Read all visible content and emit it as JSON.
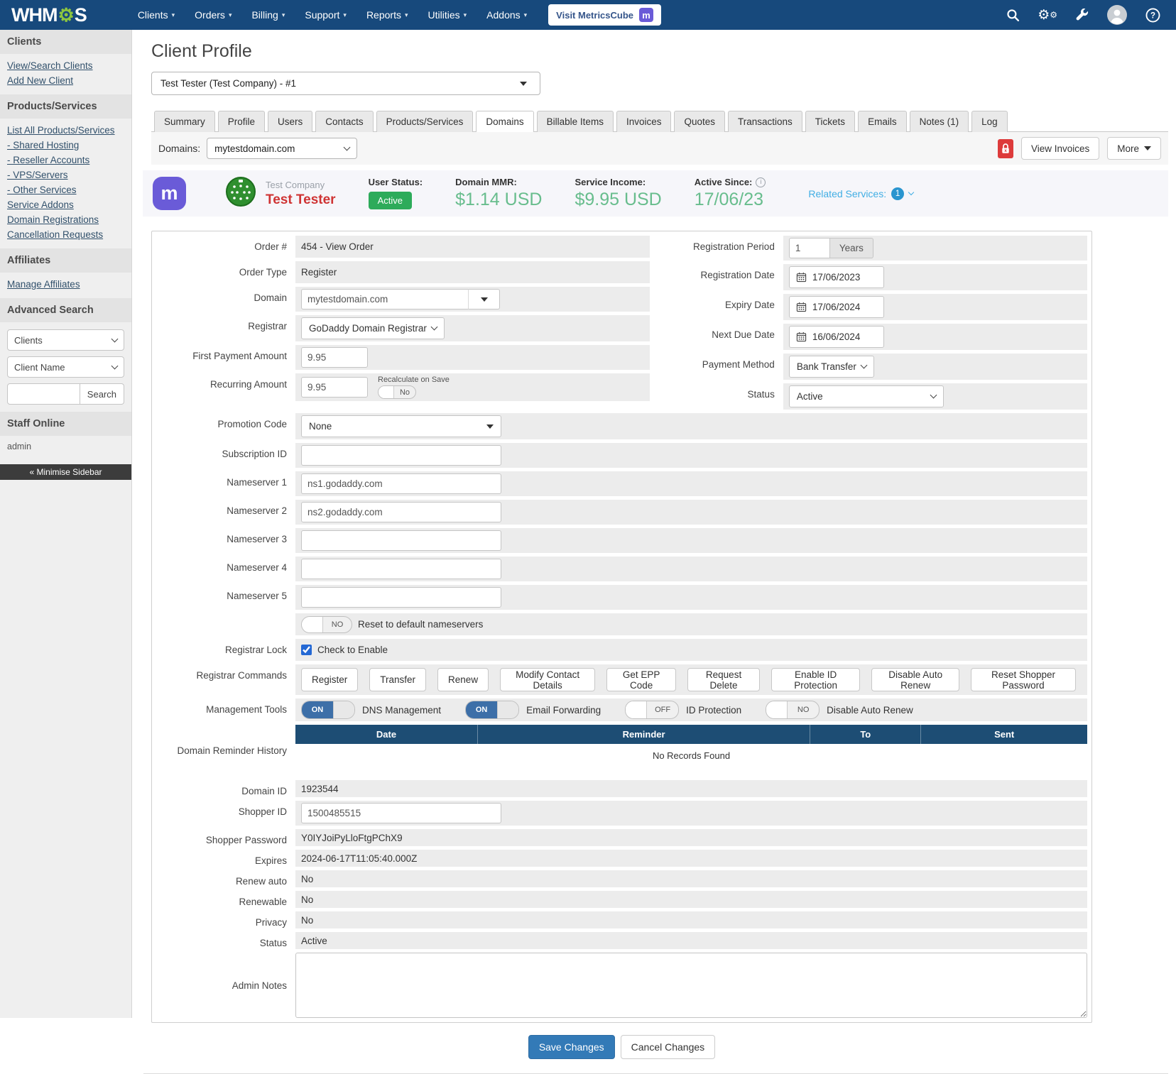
{
  "navbar": {
    "logo_pre": "WHM",
    "logo_gear": "⚙",
    "logo_post": "S",
    "items": [
      "Clients",
      "Orders",
      "Billing",
      "Support",
      "Reports",
      "Utilities",
      "Addons"
    ],
    "metricscube_label": "Visit MetricsCube",
    "metricscube_badge": "m",
    "icons": [
      "search",
      "settings-gears",
      "wrench-tools",
      "user-account",
      "help"
    ]
  },
  "sidebar": {
    "sections": [
      {
        "title": "Clients",
        "links": [
          "View/Search Clients",
          "Add New Client"
        ]
      },
      {
        "title": "Products/Services",
        "links": [
          "List All Products/Services",
          "- Shared Hosting",
          "- Reseller Accounts",
          "- VPS/Servers",
          "- Other Services",
          "Service Addons",
          "Domain Registrations",
          "Cancellation Requests"
        ]
      },
      {
        "title": "Affiliates",
        "links": [
          "Manage Affiliates"
        ]
      }
    ],
    "advanced_search": {
      "title": "Advanced Search",
      "select1": "Clients",
      "select2": "Client Name",
      "search_placeholder": "",
      "button": "Search"
    },
    "staff_online": {
      "title": "Staff Online",
      "names": [
        "admin"
      ]
    },
    "minimise": "« Minimise Sidebar"
  },
  "page": {
    "title": "Client Profile",
    "client_select": "Test Tester (Test Company) - #1",
    "tabs": [
      "Summary",
      "Profile",
      "Users",
      "Contacts",
      "Products/Services",
      "Domains",
      "Billable Items",
      "Invoices",
      "Quotes",
      "Transactions",
      "Tickets",
      "Emails",
      "Notes (1)",
      "Log"
    ],
    "active_tab": "Domains"
  },
  "toolbar": {
    "domains_label": "Domains:",
    "domain_select": "mytestdomain.com",
    "view_invoices": "View Invoices",
    "more": "More"
  },
  "summary": {
    "logo_letter": "m",
    "company": "Test Company",
    "name": "Test Tester",
    "stats": [
      {
        "label": "User Status:",
        "value": "Active",
        "style": "badge"
      },
      {
        "label": "Domain MMR:",
        "value": "$1.14 USD",
        "style": "money"
      },
      {
        "label": "Service Income:",
        "value": "$9.95 USD",
        "style": "money"
      },
      {
        "label": "Active Since:",
        "value": "17/06/23",
        "style": "money",
        "info": true
      }
    ],
    "related_label": "Related Services:",
    "related_count": "1"
  },
  "form": {
    "order_label": "Order #",
    "order_value": "454 - View Order",
    "order_type_label": "Order Type",
    "order_type_value": "Register",
    "domain_label": "Domain",
    "domain_value": "mytestdomain.com",
    "registrar_label": "Registrar",
    "registrar_value": "GoDaddy Domain Registrar",
    "first_payment_label": "First Payment Amount",
    "first_payment_value": "9.95",
    "recurring_label": "Recurring Amount",
    "recurring_value": "9.95",
    "recalc_label": "Recalculate on Save",
    "recalc_toggle": "No",
    "reg_period_label": "Registration Period",
    "reg_period_value": "1",
    "reg_period_addon": "Years",
    "reg_date_label": "Registration Date",
    "reg_date_value": "17/06/2023",
    "expiry_label": "Expiry Date",
    "expiry_value": "17/06/2024",
    "next_due_label": "Next Due Date",
    "next_due_value": "16/06/2024",
    "payment_label": "Payment Method",
    "payment_value": "Bank Transfer",
    "status_label": "Status",
    "status_value": "Active",
    "promo_label": "Promotion Code",
    "promo_value": "None",
    "subscription_label": "Subscription ID",
    "subscription_value": "",
    "nameservers": [
      {
        "label": "Nameserver 1",
        "value": "ns1.godaddy.com"
      },
      {
        "label": "Nameserver 2",
        "value": "ns2.godaddy.com"
      },
      {
        "label": "Nameserver 3",
        "value": ""
      },
      {
        "label": "Nameserver 4",
        "value": ""
      },
      {
        "label": "Nameserver 5",
        "value": ""
      }
    ],
    "reset_ns_toggle": "NO",
    "reset_ns_label": "Reset to default nameservers",
    "registrar_lock_label": "Registrar Lock",
    "registrar_lock_check": "Check to Enable",
    "commands_label": "Registrar Commands",
    "commands": [
      "Register",
      "Transfer",
      "Renew",
      "Modify Contact Details",
      "Get EPP Code",
      "Request Delete",
      "Enable ID Protection",
      "Disable Auto Renew",
      "Reset Shopper Password"
    ],
    "tools_label": "Management Tools",
    "tools": [
      {
        "state": "ON",
        "on": true,
        "label": "DNS Management"
      },
      {
        "state": "ON",
        "on": true,
        "label": "Email Forwarding"
      },
      {
        "state": "OFF",
        "on": false,
        "label": "ID Protection"
      },
      {
        "state": "NO",
        "on": false,
        "label": "Disable Auto Renew"
      }
    ],
    "reminder_label": "Domain Reminder History",
    "reminder_headers": [
      "Date",
      "Reminder",
      "To",
      "Sent"
    ],
    "reminder_empty": "No Records Found",
    "domain_id_label": "Domain ID",
    "domain_id_value": "1923544",
    "shopper_id_label": "Shopper ID",
    "shopper_id_value": "1500485515",
    "shopper_pw_label": "Shopper Password",
    "shopper_pw_value": "Y0IYJoiPyLloFtgPChX9",
    "expires_label": "Expires",
    "expires_value": "2024-06-17T11:05:40.000Z",
    "renew_auto_label": "Renew auto",
    "renew_auto_value": "No",
    "renewable_label": "Renewable",
    "renewable_value": "No",
    "privacy_label": "Privacy",
    "privacy_value": "No",
    "status2_label": "Status",
    "status2_value": "Active",
    "admin_notes_label": "Admin Notes",
    "admin_notes_value": ""
  },
  "actions": {
    "save": "Save Changes",
    "cancel": "Cancel Changes"
  }
}
